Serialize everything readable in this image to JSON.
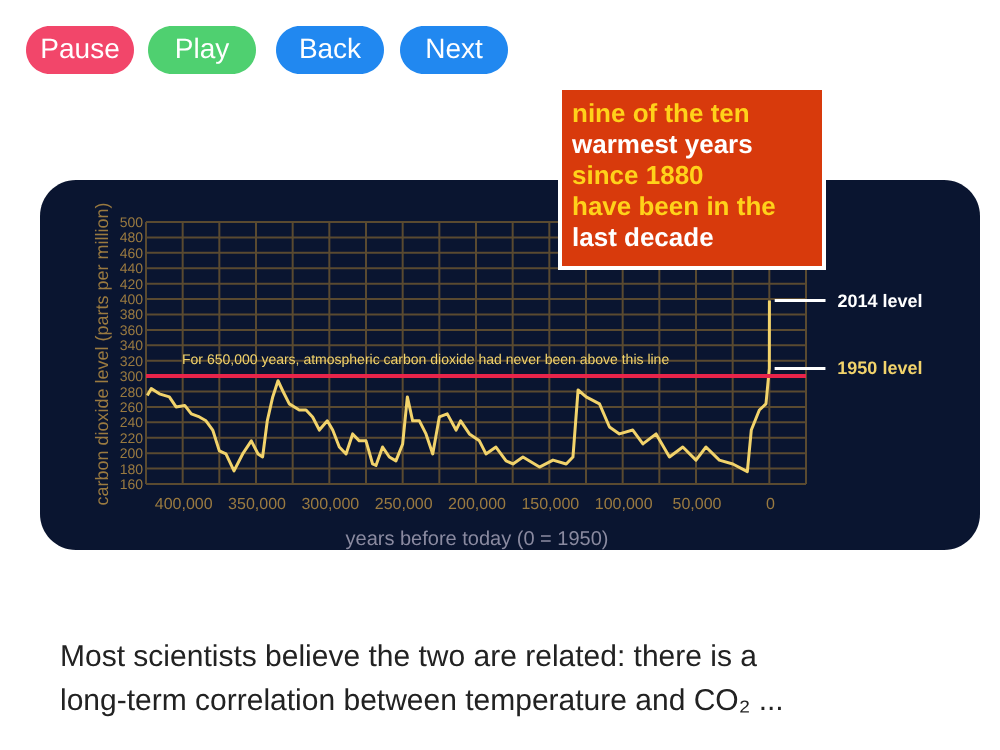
{
  "chart_data": {
    "type": "line",
    "xlabel": "years before today (0 = 1950)",
    "ylabel": "carbon dioxide level (parts per million)",
    "x": [
      424100,
      421400,
      415900,
      409100,
      404500,
      398600,
      394100,
      388600,
      384100,
      379500,
      375000,
      370500,
      365000,
      359100,
      353200,
      348600,
      345500,
      342300,
      338600,
      335000,
      331800,
      327300,
      320500,
      315900,
      311400,
      306800,
      301400,
      297700,
      293200,
      288600,
      284100,
      279600,
      275000,
      270500,
      268200,
      263700,
      259100,
      254600,
      250000,
      246800,
      243200,
      238600,
      234100,
      229500,
      225000,
      219600,
      213600,
      210500,
      204500,
      197700,
      193200,
      186400,
      179500,
      174800,
      168000,
      156700,
      147500,
      138500,
      133900,
      130400,
      124900,
      115800,
      109000,
      102200,
      93100,
      86200,
      77200,
      68100,
      59000,
      50000,
      43200,
      34100,
      24900,
      15000,
      12300,
      6800,
      2300,
      0,
      -64
    ],
    "series": [
      {
        "color": "#f2d36b",
        "values": [
          275,
          284,
          277,
          273,
          260,
          262,
          251,
          247,
          242,
          230,
          203,
          199,
          177,
          199,
          216,
          199,
          195,
          242,
          273,
          294,
          281,
          264,
          256,
          256,
          247,
          230,
          242,
          230,
          208,
          199,
          225,
          216,
          216,
          186,
          184,
          208,
          195,
          190,
          212,
          273,
          242,
          242,
          225,
          199,
          247,
          251,
          230,
          242,
          225,
          216,
          199,
          208,
          190,
          186,
          195,
          182,
          191,
          186,
          195,
          282,
          273,
          264,
          234,
          225,
          230,
          212,
          225,
          195,
          208,
          191,
          208,
          191,
          186,
          176,
          230,
          256,
          264,
          310,
          398
        ]
      }
    ],
    "xlim": [
      425000,
      -25000
    ],
    "xticks": [
      {
        "value": 400000,
        "label": "400,000"
      },
      {
        "value": 350000,
        "label": "350,000"
      },
      {
        "value": 300000,
        "label": "300,000"
      },
      {
        "value": 250000,
        "label": "250,000"
      },
      {
        "value": 200000,
        "label": "200,000"
      },
      {
        "value": 150000,
        "label": "150,000"
      },
      {
        "value": 100000,
        "label": "100,000"
      },
      {
        "value": 50000,
        "label": "50,000"
      },
      0,
      {
        "value": 425000,
        "label": null
      },
      {
        "value": 375000,
        "label": null
      },
      {
        "value": 325000,
        "label": null
      },
      {
        "value": 275000,
        "label": null
      },
      {
        "value": 225000,
        "label": null
      },
      {
        "value": 175000,
        "label": null
      },
      {
        "value": 125000,
        "label": null
      },
      {
        "value": 75000,
        "label": null
      },
      {
        "value": 25000,
        "label": null
      },
      {
        "value": -25000,
        "label": null
      }
    ],
    "ylim": [
      160,
      500
    ],
    "yticks": [
      160,
      180,
      200,
      220,
      240,
      260,
      280,
      300,
      320,
      340,
      360,
      380,
      400,
      420,
      440,
      460,
      480,
      500
    ],
    "grid": true,
    "marker": "none",
    "line_style": "solid",
    "ref_lines": [
      {
        "axis": "y",
        "value": 300,
        "label": "For 650,000 years, atmospheric carbon dioxide had never been above this line",
        "color": "#e8244a"
      }
    ],
    "annotations": [
      "Pause",
      "Play",
      "Back",
      "Next",
      "nine of the ten",
      "warmest years",
      "since 1880",
      "have been in the",
      "last decade",
      {
        "text": "2014 level",
        "x": -64,
        "y": 398
      },
      {
        "text": "1950 level",
        "x": 0,
        "y": 310
      },
      "Most scientists believe the two are related: there is a",
      "long-term correlation between temperature and CO₂ ..."
    ]
  }
}
